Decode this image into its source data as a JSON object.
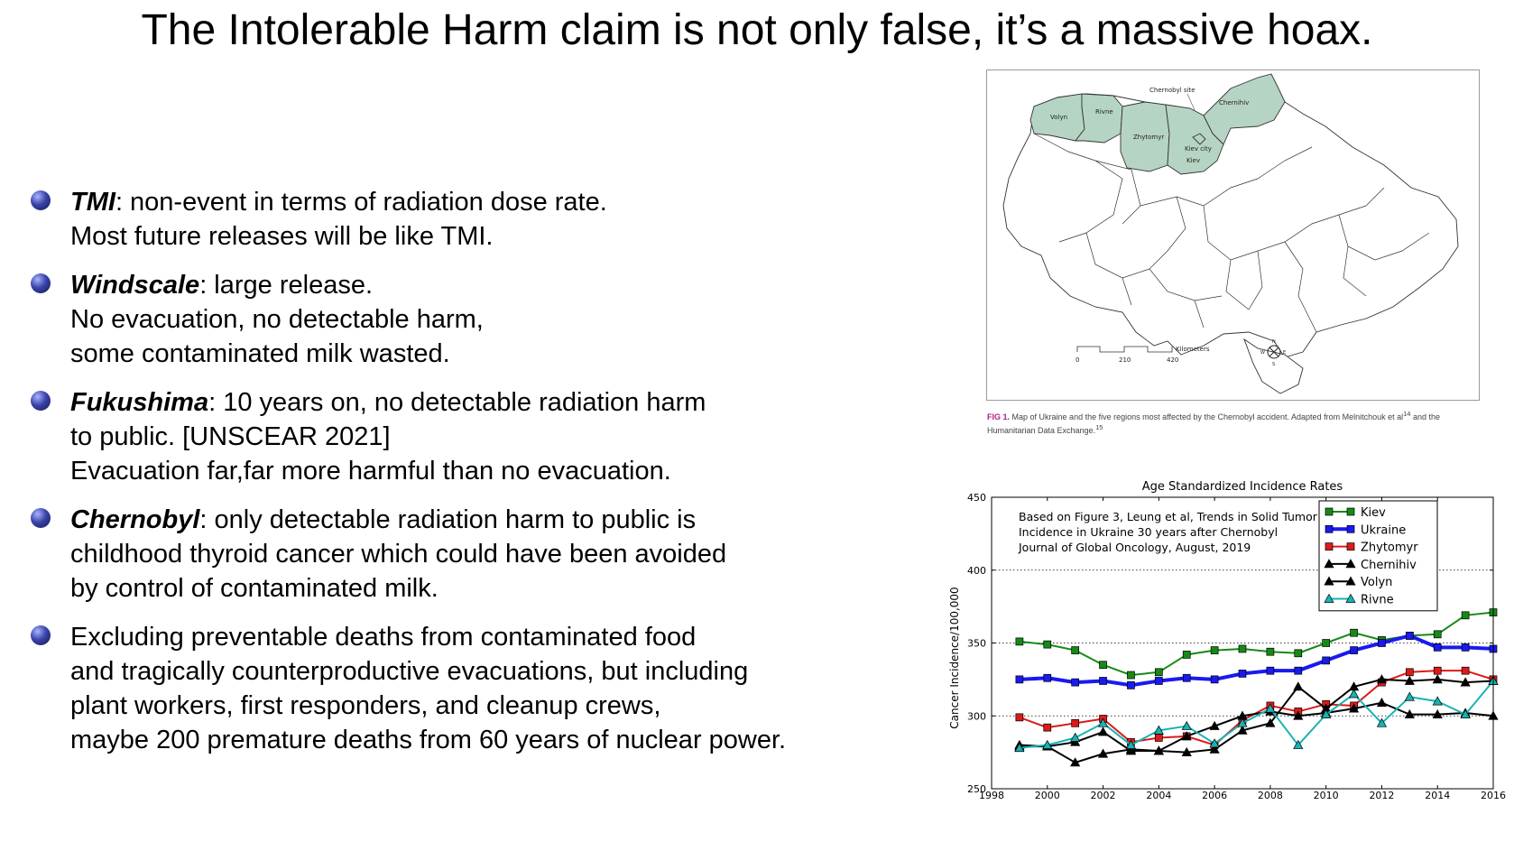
{
  "title": "The Intolerable Harm claim is not only false, it’s a massive hoax.",
  "bullets": [
    {
      "term": "TMI",
      "lines": [
        ": non-event in terms of radiation dose rate.",
        "Most future releases will be like TMI."
      ]
    },
    {
      "term": "Windscale",
      "lines": [
        ": large release.",
        "No evacuation, no detectable harm,",
        "some contaminated milk wasted."
      ]
    },
    {
      "term": "Fukushima",
      "lines": [
        ": 10 years on, no detectable radiation harm",
        "to public. [UNSCEAR 2021]",
        "Evacuation far,far more harmful than no evacuation."
      ]
    },
    {
      "term": "Chernobyl",
      "lines": [
        ": only detectable radiation harm to public is",
        "childhood thyroid cancer which could have been avoided",
        "by control of contaminated milk."
      ]
    },
    {
      "term": "",
      "lines": [
        "Excluding preventable deaths from contaminated food",
        "and tragically counterproductive evacuations, but including",
        "plant workers, first responders, and cleanup crews,",
        "maybe 200 premature deaths from 60 years of nuclear power."
      ]
    }
  ],
  "map": {
    "labels": {
      "chernobyl_site": "Chernobyl site",
      "chernihiv": "Chernihiv",
      "volyn": "Volyn",
      "rivne": "Rivne",
      "zhytomyr": "Zhytomyr",
      "kiev_city": "Kiev city",
      "kiev": "Kiev"
    },
    "scale": {
      "unit": "Kilometers",
      "t0": "0",
      "t1": "210",
      "t2": "420"
    },
    "compass": {
      "n": "N",
      "s": "S",
      "e": "E",
      "w": "W"
    },
    "caption_fig": "FIG 1.",
    "caption_text": "Map of Ukraine and the five regions most affected by the Chernobyl accident. Adapted from Melnitchouk et al",
    "caption_ref1": "14",
    "caption_text2": " and the Humanitarian Data Exchange.",
    "caption_ref2": "15",
    "colors": {
      "affected": "#b6d4c4",
      "border": "#333333"
    }
  },
  "chart_data": {
    "type": "line",
    "title": "Age Standardized Incidence Rates",
    "xlabel": "",
    "ylabel": "Cancer Incidence/100,000",
    "xlim": [
      1998,
      2016
    ],
    "ylim": [
      250,
      450
    ],
    "xticks": [
      "1998",
      "2000",
      "2002",
      "2004",
      "2006",
      "2008",
      "2010",
      "2012",
      "2014",
      "2016"
    ],
    "yticks": [
      "250",
      "300",
      "350",
      "400",
      "450"
    ],
    "grid": "dotted-horizontal",
    "annotation": [
      "Based on Figure 3, Leung et al, Trends in Solid Tumor",
      "Incidence in Ukraine 30 years after Chernobyl",
      "Journal of Global Oncology, August, 2019"
    ],
    "legend_position": "top-right",
    "x": [
      1999,
      2000,
      2001,
      2002,
      2003,
      2004,
      2005,
      2006,
      2007,
      2008,
      2009,
      2010,
      2011,
      2012,
      2013,
      2014,
      2015,
      2016
    ],
    "series": [
      {
        "name": "Kiev",
        "color": "#168a16",
        "marker": "square",
        "width": 2,
        "values": [
          351,
          349,
          345,
          335,
          328,
          330,
          342,
          345,
          346,
          344,
          343,
          350,
          357,
          352,
          355,
          356,
          369,
          371
        ]
      },
      {
        "name": "Ukraine",
        "color": "#1a1aee",
        "marker": "square",
        "width": 4,
        "values": [
          325,
          326,
          323,
          324,
          321,
          324,
          326,
          325,
          329,
          331,
          331,
          338,
          345,
          350,
          355,
          347,
          347,
          346
        ]
      },
      {
        "name": "Zhytomyr",
        "color": "#dd1a1a",
        "marker": "square",
        "width": 2,
        "values": [
          299,
          292,
          295,
          298,
          282,
          285,
          286,
          280,
          297,
          307,
          303,
          308,
          307,
          323,
          330,
          331,
          331,
          325
        ]
      },
      {
        "name": "Chernihiv",
        "color": "#000000",
        "marker": "triangle",
        "width": 2,
        "values": [
          279,
          279,
          268,
          274,
          277,
          276,
          275,
          277,
          290,
          295,
          320,
          305,
          320,
          325,
          324,
          325,
          323,
          324
        ]
      },
      {
        "name": "Volyn",
        "color": "#000000",
        "marker": "triangle",
        "width": 2,
        "values": [
          280,
          279,
          282,
          289,
          276,
          276,
          286,
          293,
          300,
          303,
          300,
          302,
          305,
          309,
          301,
          301,
          302,
          300
        ]
      },
      {
        "name": "Rivne",
        "color": "#17b3b3",
        "marker": "triangle",
        "width": 2,
        "values": [
          278,
          280,
          285,
          295,
          280,
          290,
          293,
          281,
          295,
          305,
          280,
          301,
          315,
          295,
          313,
          310,
          301,
          324
        ]
      }
    ]
  }
}
